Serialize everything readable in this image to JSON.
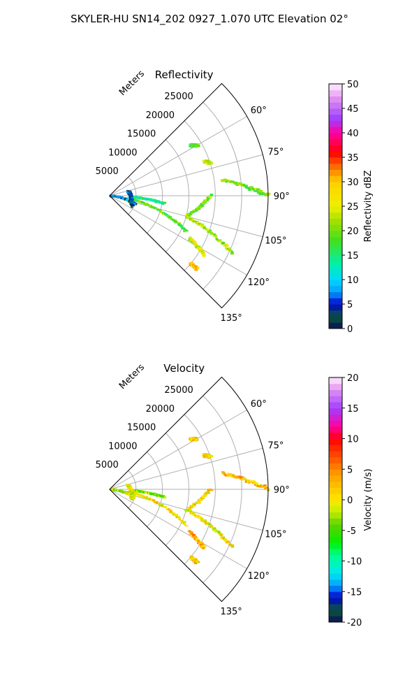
{
  "figure": {
    "title": "SKYLER-HU  SN14_202  0927_1.070 UTC Elevation 02°"
  },
  "chart_data": [
    {
      "type": "polar_sector_heatmap",
      "title": "Reflectivity",
      "range_label": "Meters",
      "range_ticks": [
        5000,
        10000,
        15000,
        20000,
        25000
      ],
      "range_max": 30000,
      "angle_range_deg": [
        45,
        135
      ],
      "angle_ticks_deg": [
        60,
        75,
        90,
        105,
        120,
        135
      ],
      "grid": true,
      "colorbar": {
        "label": "Reflectivity dBZ",
        "min": 0,
        "max": 50,
        "ticks": [
          0,
          5,
          10,
          15,
          20,
          25,
          30,
          35,
          40,
          45,
          50
        ],
        "stops": [
          {
            "v": 0,
            "c": "#0b0b5a"
          },
          {
            "v": 2.5,
            "c": "#0a5a3a"
          },
          {
            "v": 5,
            "c": "#0000cc"
          },
          {
            "v": 7.5,
            "c": "#00a0ff"
          },
          {
            "v": 10,
            "c": "#00d8ff"
          },
          {
            "v": 13,
            "c": "#00f0b0"
          },
          {
            "v": 18,
            "c": "#40e020"
          },
          {
            "v": 22,
            "c": "#a0e000"
          },
          {
            "v": 25,
            "c": "#f0f000"
          },
          {
            "v": 30,
            "c": "#ffd000"
          },
          {
            "v": 33,
            "c": "#ff7000"
          },
          {
            "v": 36,
            "c": "#ff0000"
          },
          {
            "v": 40,
            "c": "#ff00a0"
          },
          {
            "v": 43,
            "c": "#a040ff"
          },
          {
            "v": 47,
            "c": "#e090f0"
          },
          {
            "v": 50,
            "c": "#fff0ff"
          }
        ]
      },
      "features": [
        {
          "az": [
            82,
            90
          ],
          "r": [
            21500,
            30000
          ],
          "value": 20
        },
        {
          "az": [
            105,
            90
          ],
          "r": [
            15000,
            19000
          ],
          "value": 20
        },
        {
          "az": [
            105,
            115
          ],
          "r": [
            15000,
            25500
          ],
          "value": 22
        },
        {
          "az": [
            93,
            98
          ],
          "r": [
            4500,
            10500
          ],
          "value": 14
        },
        {
          "az": [
            98,
            115
          ],
          "r": [
            3500,
            16000
          ],
          "value": 18
        },
        {
          "az": [
            118,
            122
          ],
          "r": [
            17000,
            21000
          ],
          "value": 24
        },
        {
          "az": [
            130,
            130
          ],
          "r": [
            20000,
            21500
          ],
          "value": 30
        },
        {
          "az": [
            92,
            108
          ],
          "r": [
            0,
            5000
          ],
          "value": 6
        },
        {
          "az": [
            75,
            115
          ],
          "r": [
            3500,
            4500
          ],
          "value": 4
        },
        {
          "az": [
            70,
            72
          ],
          "r": [
            19000,
            20000
          ],
          "value": 24
        },
        {
          "az": [
            58,
            60
          ],
          "r": [
            18000,
            19000
          ],
          "value": 18
        }
      ]
    },
    {
      "type": "polar_sector_heatmap",
      "title": "Velocity",
      "range_label": "Meters",
      "range_ticks": [
        5000,
        10000,
        15000,
        20000,
        25000
      ],
      "range_max": 30000,
      "angle_range_deg": [
        45,
        135
      ],
      "angle_ticks_deg": [
        60,
        75,
        90,
        105,
        120,
        135
      ],
      "grid": true,
      "colorbar": {
        "label": "Velocity (m/s)",
        "min": -20,
        "max": 20,
        "ticks": [
          -20,
          -15,
          -10,
          -5,
          0,
          5,
          10,
          15,
          20
        ],
        "stops": [
          {
            "v": -20,
            "c": "#0b0b5a"
          },
          {
            "v": -18,
            "c": "#0a5a3a"
          },
          {
            "v": -16,
            "c": "#0000cc"
          },
          {
            "v": -14,
            "c": "#00a0ff"
          },
          {
            "v": -12,
            "c": "#00e8f0"
          },
          {
            "v": -9,
            "c": "#00ff90"
          },
          {
            "v": -7,
            "c": "#00f000"
          },
          {
            "v": -4,
            "c": "#60d000"
          },
          {
            "v": -2,
            "c": "#c0f000"
          },
          {
            "v": 0,
            "c": "#ffe800"
          },
          {
            "v": 4,
            "c": "#ffa000"
          },
          {
            "v": 7,
            "c": "#ff5000"
          },
          {
            "v": 10,
            "c": "#ff0000"
          },
          {
            "v": 12,
            "c": "#ff00a0"
          },
          {
            "v": 15,
            "c": "#a040ff"
          },
          {
            "v": 18,
            "c": "#e090f0"
          },
          {
            "v": 20,
            "c": "#fff0ff"
          }
        ]
      },
      "features": [
        {
          "az": [
            82,
            90
          ],
          "r": [
            21500,
            30000
          ],
          "value": 2
        },
        {
          "az": [
            105,
            90
          ],
          "r": [
            15000,
            19000
          ],
          "value": 1
        },
        {
          "az": [
            105,
            115
          ],
          "r": [
            15000,
            25500
          ],
          "value": 0
        },
        {
          "az": [
            93,
            98
          ],
          "r": [
            4500,
            10500
          ],
          "value": -4
        },
        {
          "az": [
            98,
            115
          ],
          "r": [
            3500,
            16000
          ],
          "value": 1
        },
        {
          "az": [
            118,
            122
          ],
          "r": [
            17000,
            21000
          ],
          "value": 3
        },
        {
          "az": [
            130,
            130
          ],
          "r": [
            20000,
            21500
          ],
          "value": 2
        },
        {
          "az": [
            92,
            108
          ],
          "r": [
            0,
            5000
          ],
          "value": -2
        },
        {
          "az": [
            75,
            115
          ],
          "r": [
            3500,
            4500
          ],
          "value": -1
        },
        {
          "az": [
            70,
            72
          ],
          "r": [
            19000,
            20000
          ],
          "value": 1
        },
        {
          "az": [
            58,
            60
          ],
          "r": [
            18000,
            19000
          ],
          "value": 2
        }
      ]
    }
  ]
}
